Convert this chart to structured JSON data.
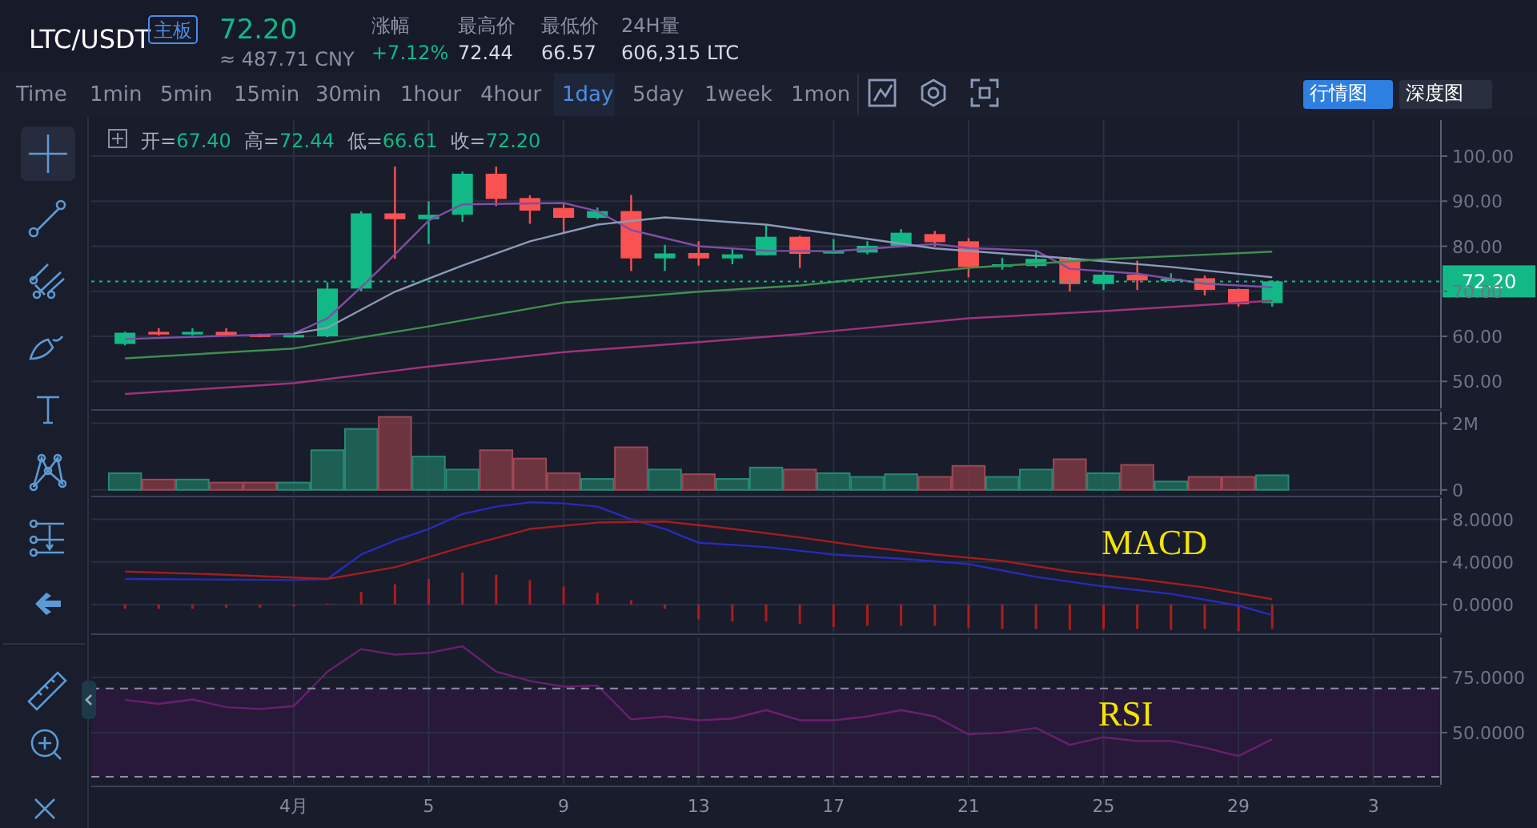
{
  "chart_data": [
    {
      "type": "other",
      "title": "LTC/USDT",
      "annotations": [
        "主板",
        "72.20",
        "≈ 487.71 CNY",
        "涨幅",
        "+7.12%",
        "最高价",
        "72.44",
        "最低价",
        "66.57",
        "24H量",
        "606,315 LTC",
        "Time",
        "1min",
        "5min",
        "15min",
        "30min",
        "1hour",
        "4hour",
        "1day",
        "5day",
        "1week",
        "1mon",
        "行情图",
        "深度图"
      ]
    },
    {
      "type": "candlestick",
      "x": [
        "--03-27",
        "--03-28",
        "--03-29",
        "--03-30",
        "--03-31",
        "--04-01",
        "--04-02",
        "--04-03",
        "--04-04",
        "--04-05",
        "--04-06",
        "--04-07",
        "--04-08",
        "--04-09",
        "--04-10",
        "--04-11",
        "--04-12",
        "--04-13",
        "--04-14",
        "--04-15",
        "--04-16",
        "--04-17",
        "--04-18",
        "--04-19",
        "--04-20",
        "--04-21",
        "--04-22",
        "--04-23",
        "--04-24",
        "--04-25",
        "--04-26",
        "--04-27",
        "--04-28",
        "--04-29",
        "--04-30"
      ],
      "ohlc": [
        [
          58.3,
          61.0,
          58.0,
          60.8
        ],
        [
          61.0,
          61.8,
          60.2,
          60.4
        ],
        [
          60.4,
          61.8,
          60.2,
          61.0
        ],
        [
          61.0,
          61.8,
          60.0,
          60.2
        ],
        [
          60.4,
          60.6,
          59.8,
          59.9
        ],
        [
          60.0,
          60.6,
          59.8,
          60.3
        ],
        [
          60.0,
          72.0,
          59.8,
          70.6
        ],
        [
          70.6,
          87.8,
          70.0,
          87.3
        ],
        [
          87.3,
          97.7,
          77.2,
          86.0
        ],
        [
          86.0,
          90.0,
          80.5,
          87.0
        ],
        [
          87.0,
          96.6,
          85.4,
          96.1
        ],
        [
          96.1,
          97.7,
          88.9,
          90.5
        ],
        [
          90.7,
          91.3,
          85.0,
          87.9
        ],
        [
          88.5,
          89.3,
          83.1,
          86.3
        ],
        [
          86.3,
          88.6,
          86.0,
          87.8
        ],
        [
          87.8,
          91.4,
          74.5,
          77.3
        ],
        [
          77.3,
          80.3,
          74.5,
          78.4
        ],
        [
          78.5,
          81.1,
          75.7,
          77.3
        ],
        [
          77.3,
          79.6,
          76.0,
          78.2
        ],
        [
          78.0,
          84.8,
          78.0,
          82.1
        ],
        [
          82.1,
          82.3,
          75.2,
          78.3
        ],
        [
          78.6,
          81.6,
          78.4,
          78.9
        ],
        [
          78.6,
          81.1,
          78.2,
          80.1
        ],
        [
          80.1,
          83.8,
          79.8,
          83.0
        ],
        [
          82.7,
          83.4,
          79.9,
          80.9
        ],
        [
          81.1,
          81.8,
          73.1,
          75.4
        ],
        [
          75.4,
          77.4,
          74.8,
          76.0
        ],
        [
          75.6,
          78.9,
          75.2,
          77.2
        ],
        [
          77.2,
          77.6,
          70.0,
          71.6
        ],
        [
          71.6,
          74.4,
          70.3,
          73.7
        ],
        [
          73.7,
          76.8,
          70.3,
          72.4
        ],
        [
          72.6,
          74.0,
          72.3,
          72.8
        ],
        [
          72.9,
          73.5,
          69.1,
          70.3
        ],
        [
          70.5,
          70.6,
          66.6,
          67.1
        ],
        [
          67.4,
          72.44,
          66.61,
          72.2
        ]
      ],
      "colors": [
        "#12b886",
        "#fa5252",
        "#12b886",
        "#fa5252",
        "#fa5252",
        "#12b886",
        "#12b886",
        "#12b886",
        "#fa5252",
        "#12b886",
        "#12b886",
        "#fa5252",
        "#fa5252",
        "#fa5252",
        "#12b886",
        "#fa5252",
        "#12b886",
        "#fa5252",
        "#12b886",
        "#12b886",
        "#fa5252",
        "#12b886",
        "#12b886",
        "#12b886",
        "#fa5252",
        "#fa5252",
        "#12b886",
        "#12b886",
        "#fa5252",
        "#12b886",
        "#fa5252",
        "#12b886",
        "#fa5252",
        "#fa5252",
        "#12b886"
      ],
      "series": [
        {
          "type": "line",
          "color": "#7e4fa6",
          "x": [
            "--03-27",
            "--04-01",
            "--04-02",
            "--04-03",
            "--04-04",
            "--04-05",
            "--04-06",
            "--04-09",
            "--04-10",
            "--04-11",
            "--04-13",
            "--04-15",
            "--04-17",
            "--04-20",
            "--04-21",
            "--04-23",
            "--04-24",
            "--04-26",
            "--04-28",
            "--04-30"
          ],
          "values": [
            59.4,
            60.6,
            64.0,
            70.9,
            78.2,
            85.7,
            89.3,
            89.6,
            87.8,
            83.6,
            80.0,
            79.0,
            78.9,
            80.5,
            79.6,
            79.0,
            75.0,
            73.9,
            71.7,
            70.9
          ]
        },
        {
          "type": "line",
          "color": "#8b9bb8",
          "x": [
            "--04-01",
            "--04-02",
            "--04-04",
            "--04-06",
            "--04-08",
            "--04-10",
            "--04-12",
            "--04-15",
            "--04-17",
            "--04-20",
            "--04-24",
            "--04-27",
            "--04-30"
          ],
          "values": [
            60.6,
            61.9,
            69.9,
            75.7,
            81.1,
            84.8,
            86.4,
            84.8,
            82.7,
            79.5,
            77.3,
            75.4,
            73.1
          ]
        },
        {
          "type": "line",
          "color": "#3f8f4f",
          "x": [
            "--03-27",
            "--04-01",
            "--04-05",
            "--04-09",
            "--04-13",
            "--04-16",
            "--04-21",
            "--04-25",
            "--04-30"
          ],
          "values": [
            55.1,
            57.3,
            62.2,
            67.5,
            69.9,
            71.3,
            75.2,
            77.1,
            78.8
          ]
        },
        {
          "type": "line",
          "color": "#a0337a",
          "x": [
            "--03-27",
            "--04-01",
            "--04-05",
            "--04-09",
            "--04-13",
            "--04-16",
            "--04-21",
            "--04-25",
            "--04-30"
          ],
          "values": [
            47.2,
            49.6,
            53.3,
            56.5,
            58.7,
            60.5,
            64.0,
            65.6,
            67.9
          ]
        }
      ],
      "ylim": [
        44,
        108
      ],
      "yticks": [
        {
          "value": 50,
          "label": "50.00"
        },
        {
          "value": 60,
          "label": "60.00"
        },
        {
          "value": 70,
          "label": "70.00"
        },
        {
          "value": 80,
          "label": "80.00"
        },
        {
          "value": 90,
          "label": "90.00"
        },
        {
          "value": 100,
          "label": "100.00"
        }
      ],
      "xlim": [
        "--03-26",
        "--05-05"
      ],
      "xticks": [
        "--04-01",
        "--04-05",
        "--04-09",
        "--04-13",
        "--04-17",
        "--04-21",
        "--04-25",
        "--04-29",
        "--05-03"
      ],
      "ref_lines": [
        {
          "axis": "y",
          "value": 72.2,
          "label": "72.20",
          "color": "#12b886",
          "line_style": "dotted"
        }
      ],
      "annotations": [
        "开=67.40 高=72.44 低=66.61 收=72.20"
      ],
      "grid": true,
      "tick_labels": "y"
    },
    {
      "type": "bar",
      "x": [
        "--03-27",
        "--03-28",
        "--03-29",
        "--03-30",
        "--03-31",
        "--04-01",
        "--04-02",
        "--04-03",
        "--04-04",
        "--04-05",
        "--04-06",
        "--04-07",
        "--04-08",
        "--04-09",
        "--04-10",
        "--04-11",
        "--04-12",
        "--04-13",
        "--04-14",
        "--04-15",
        "--04-16",
        "--04-17",
        "--04-18",
        "--04-19",
        "--04-20",
        "--04-21",
        "--04-22",
        "--04-23",
        "--04-24",
        "--04-25",
        "--04-26",
        "--04-27",
        "--04-28",
        "--04-29",
        "--04-30"
      ],
      "values": [
        0.5,
        0.31,
        0.31,
        0.22,
        0.22,
        0.22,
        1.19,
        1.83,
        2.19,
        1.0,
        0.61,
        1.19,
        0.94,
        0.5,
        0.33,
        1.28,
        0.61,
        0.47,
        0.33,
        0.67,
        0.61,
        0.5,
        0.39,
        0.47,
        0.39,
        0.72,
        0.39,
        0.61,
        0.92,
        0.5,
        0.75,
        0.25,
        0.39,
        0.39,
        0.44
      ],
      "colors": [
        "#1e6b5b",
        "#7a3842",
        "#1e6b5b",
        "#7a3842",
        "#7a3842",
        "#1e6b5b",
        "#1e6b5b",
        "#1e6b5b",
        "#7a3842",
        "#1e6b5b",
        "#1e6b5b",
        "#7a3842",
        "#7a3842",
        "#7a3842",
        "#1e6b5b",
        "#7a3842",
        "#1e6b5b",
        "#7a3842",
        "#1e6b5b",
        "#1e6b5b",
        "#7a3842",
        "#1e6b5b",
        "#1e6b5b",
        "#1e6b5b",
        "#7a3842",
        "#7a3842",
        "#1e6b5b",
        "#1e6b5b",
        "#7a3842",
        "#1e6b5b",
        "#7a3842",
        "#1e6b5b",
        "#7a3842",
        "#7a3842",
        "#1e6b5b"
      ],
      "ylim": [
        -0.15,
        2.35
      ],
      "yticks": [
        0,
        {
          "value": 2,
          "label": "2M"
        }
      ],
      "xlim": [
        "--03-26",
        "--05-05"
      ],
      "xticks": [
        "--04-01",
        "--04-05",
        "--04-09",
        "--04-13",
        "--04-17",
        "--04-21",
        "--04-25",
        "--04-29",
        "--05-03"
      ],
      "grid": true,
      "tick_labels": "y"
    },
    {
      "type": "line",
      "x": [
        "--03-27",
        "--03-28",
        "--03-29",
        "--03-30",
        "--03-31",
        "--04-01",
        "--04-02",
        "--04-03",
        "--04-04",
        "--04-05",
        "--04-06",
        "--04-07",
        "--04-08",
        "--04-09",
        "--04-10",
        "--04-11",
        "--04-12",
        "--04-13",
        "--04-14",
        "--04-15",
        "--04-16",
        "--04-17",
        "--04-18",
        "--04-19",
        "--04-20",
        "--04-21",
        "--04-22",
        "--04-23",
        "--04-24",
        "--04-25",
        "--04-26",
        "--04-27",
        "--04-28",
        "--04-29",
        "--04-30"
      ],
      "series": [
        {
          "type": "bar",
          "color": "#b01c1c",
          "values": [
            -0.4,
            -0.4,
            -0.4,
            -0.3,
            -0.3,
            -0.2,
            0.1,
            1.2,
            1.9,
            2.4,
            3.0,
            2.8,
            2.3,
            1.7,
            1.1,
            0.4,
            -0.4,
            -1.4,
            -1.6,
            -1.6,
            -1.8,
            -2.1,
            -2.0,
            -2.0,
            -2.0,
            -2.2,
            -2.3,
            -2.3,
            -2.4,
            -2.3,
            -2.3,
            -2.4,
            -2.3,
            -2.5,
            -2.3
          ]
        },
        {
          "type": "line",
          "color": "#2a2ab8",
          "x": [
            "--03-27",
            "--04-01",
            "--04-02",
            "--04-03",
            "--04-04",
            "--04-05",
            "--04-06",
            "--04-07",
            "--04-08",
            "--04-09",
            "--04-10",
            "--04-11",
            "--04-12",
            "--04-13",
            "--04-15",
            "--04-17",
            "--04-19",
            "--04-21",
            "--04-23",
            "--04-25",
            "--04-27",
            "--04-29",
            "--04-30"
          ],
          "values": [
            2.4,
            2.3,
            2.4,
            4.7,
            6.0,
            7.1,
            8.5,
            9.2,
            9.6,
            9.5,
            9.2,
            8.0,
            7.1,
            5.8,
            5.4,
            4.7,
            4.3,
            3.8,
            2.6,
            1.7,
            1.0,
            -0.1,
            -1.0
          ]
        },
        {
          "type": "line",
          "color": "#a31d1d",
          "x": [
            "--03-27",
            "--03-30",
            "--04-02",
            "--04-04",
            "--04-06",
            "--04-08",
            "--04-10",
            "--04-12",
            "--04-14",
            "--04-16",
            "--04-18",
            "--04-20",
            "--04-22",
            "--04-24",
            "--04-26",
            "--04-28",
            "--04-30"
          ],
          "values": [
            3.1,
            2.8,
            2.4,
            3.5,
            5.4,
            7.1,
            7.7,
            7.8,
            7.1,
            6.3,
            5.4,
            4.7,
            4.1,
            3.1,
            2.4,
            1.6,
            0.5
          ]
        }
      ],
      "ylim": [
        -2.64,
        10.0
      ],
      "yticks": [
        {
          "value": 0,
          "label": "0.0000"
        },
        {
          "value": 4,
          "label": "4.0000"
        },
        {
          "value": 8,
          "label": "8.0000"
        }
      ],
      "xlim": [
        "--03-26",
        "--05-05"
      ],
      "xticks": [
        "--04-01",
        "--04-05",
        "--04-09",
        "--04-13",
        "--04-17",
        "--04-21",
        "--04-25",
        "--04-29",
        "--05-03"
      ],
      "annotations": [
        "MACD"
      ],
      "grid": true,
      "tick_labels": "y"
    },
    {
      "type": "line",
      "x": [
        "--03-27",
        "--03-28",
        "--03-29",
        "--03-30",
        "--03-31",
        "--04-01",
        "--04-02",
        "--04-03",
        "--04-04",
        "--04-05",
        "--04-06",
        "--04-07",
        "--04-08",
        "--04-09",
        "--04-10",
        "--04-11",
        "--04-12",
        "--04-13",
        "--04-14",
        "--04-15",
        "--04-16",
        "--04-17",
        "--04-18",
        "--04-19",
        "--04-20",
        "--04-21",
        "--04-22",
        "--04-23",
        "--04-24",
        "--04-25",
        "--04-26",
        "--04-27",
        "--04-28",
        "--04-29",
        "--04-30"
      ],
      "series": [
        {
          "color": "#6a1f6e",
          "values": [
            64.8,
            63,
            65,
            61.5,
            60.7,
            62,
            77.6,
            87.8,
            85.3,
            86.1,
            89.1,
            77.6,
            73.4,
            70.8,
            71.3,
            56,
            57.3,
            55.6,
            56.4,
            60.2,
            55.6,
            55.6,
            57.3,
            60.2,
            57.3,
            49.2,
            50,
            52.1,
            44.5,
            47.9,
            46.2,
            46.2,
            43.2,
            39.4,
            47.0
          ]
        }
      ],
      "ylim": [
        26.4,
        93.1
      ],
      "yticks": [
        {
          "value": 50,
          "label": "50.0000"
        },
        {
          "value": 75,
          "label": "75.0000"
        }
      ],
      "xlim": [
        "--03-26",
        "--05-05"
      ],
      "xticks": [
        {
          "value": "--04-01",
          "label": "4月"
        },
        {
          "value": "--04-05",
          "label": "5"
        },
        {
          "value": "--04-09",
          "label": "9"
        },
        {
          "value": "--04-13",
          "label": "13"
        },
        {
          "value": "--04-17",
          "label": "17"
        },
        {
          "value": "--04-21",
          "label": "21"
        },
        {
          "value": "--04-25",
          "label": "25"
        },
        {
          "value": "--04-29",
          "label": "29"
        },
        {
          "value": "--05-03",
          "label": "3"
        }
      ],
      "ref_lines": [
        {
          "axis": "y",
          "value": 70,
          "color": "#8a8fa0",
          "line_style": "dashed"
        },
        {
          "axis": "y",
          "value": 30,
          "color": "#8a8fa0",
          "line_style": "dashed"
        }
      ],
      "bands": [
        {
          "axis": "y",
          "from": 30,
          "to": 70,
          "color": "#2a1a3c"
        }
      ],
      "annotations": [
        "RSI"
      ],
      "grid": true
    }
  ]
}
